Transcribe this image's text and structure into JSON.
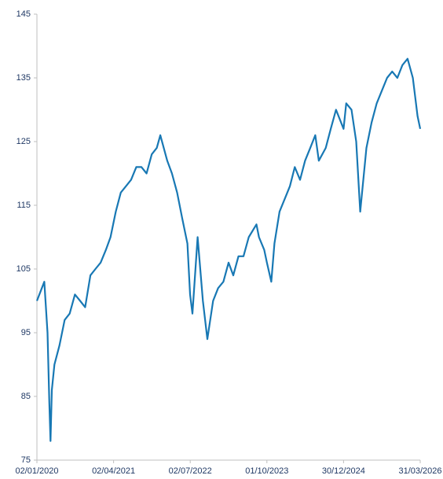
{
  "chart_data": {
    "type": "line",
    "x": [
      "02/01/2020",
      "15/02/2020",
      "05/03/2020",
      "16/03/2020",
      "23/03/2020",
      "31/03/2020",
      "15/04/2020",
      "15/05/2020",
      "15/06/2020",
      "15/07/2020",
      "15/08/2020",
      "15/09/2020",
      "15/10/2020",
      "15/11/2020",
      "15/12/2020",
      "15/01/2021",
      "15/02/2021",
      "15/03/2021",
      "15/04/2021",
      "15/05/2021",
      "15/06/2021",
      "15/07/2021",
      "15/08/2021",
      "15/09/2021",
      "15/10/2021",
      "15/11/2021",
      "15/12/2021",
      "05/01/2022",
      "15/02/2022",
      "15/03/2022",
      "15/04/2022",
      "15/05/2022",
      "15/06/2022",
      "01/07/2022",
      "15/07/2022",
      "15/08/2022",
      "15/09/2022",
      "12/10/2022",
      "15/11/2022",
      "15/12/2022",
      "15/01/2023",
      "15/02/2023",
      "15/03/2023",
      "15/04/2023",
      "15/05/2023",
      "15/06/2023",
      "31/07/2023",
      "15/08/2023",
      "15/09/2023",
      "01/10/2023",
      "27/10/2023",
      "15/11/2023",
      "15/12/2023",
      "15/01/2024",
      "15/02/2024",
      "15/03/2024",
      "15/04/2024",
      "15/05/2024",
      "15/06/2024",
      "15/07/2024",
      "05/08/2024",
      "15/09/2024",
      "15/10/2024",
      "15/11/2024",
      "30/12/2024",
      "15/01/2025",
      "15/02/2025",
      "15/03/2025",
      "08/04/2025",
      "15/05/2025",
      "15/06/2025",
      "15/07/2025",
      "15/08/2025",
      "15/09/2025",
      "15/10/2025",
      "15/11/2025",
      "15/12/2025",
      "15/01/2026",
      "15/02/2026",
      "15/03/2026",
      "31/03/2026"
    ],
    "values": [
      100,
      103,
      95,
      84,
      78,
      86,
      90,
      93,
      97,
      98,
      101,
      100,
      99,
      104,
      105,
      106,
      108,
      110,
      114,
      117,
      118,
      119,
      121,
      121,
      120,
      123,
      124,
      126,
      122,
      120,
      117,
      113,
      109,
      101,
      98,
      110,
      100,
      94,
      100,
      102,
      103,
      106,
      104,
      107,
      107,
      110,
      112,
      110,
      108,
      106,
      103,
      109,
      114,
      116,
      118,
      121,
      119,
      122,
      124,
      126,
      122,
      124,
      127,
      130,
      127,
      131,
      130,
      125,
      114,
      124,
      128,
      131,
      133,
      135,
      136,
      135,
      137,
      138,
      135,
      129,
      127
    ],
    "color": "#1878b4",
    "xlim": [
      "02/01/2020",
      "31/03/2026"
    ],
    "xticks": [
      "02/01/2020",
      "02/04/2021",
      "02/07/2022",
      "01/10/2023",
      "30/12/2024",
      "31/03/2026"
    ],
    "ylim": [
      75,
      145
    ],
    "yticks": [
      75,
      85,
      95,
      105,
      115,
      125,
      135,
      145
    ]
  }
}
